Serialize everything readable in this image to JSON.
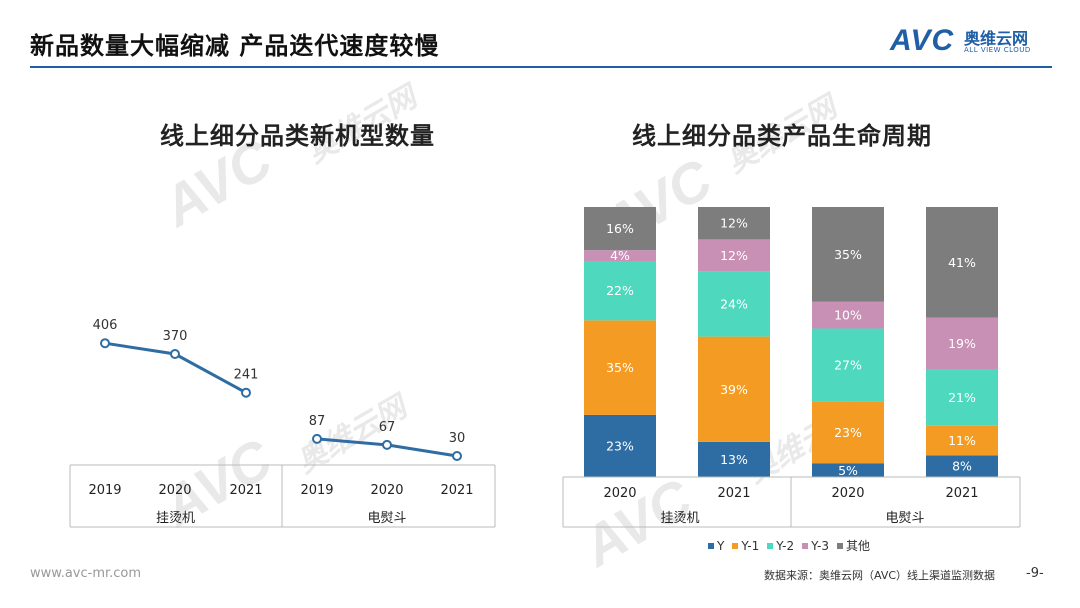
{
  "header": {
    "title": "新品数量大幅缩减  产品迭代速度较慢"
  },
  "logo": {
    "mark": "AVC",
    "cn": "奥维云网",
    "en": "ALL VIEW CLOUD",
    "color": "#1f5fa6"
  },
  "watermark": {
    "mark": "AVC",
    "cn": "奥维云网",
    "en": "ALL VIEW CLOUD"
  },
  "footer": {
    "website": "www.avc-mr.com",
    "source": "数据来源：奥维云网（AVC）线上渠道监测数据",
    "page": "-9-"
  },
  "chart_data": [
    {
      "type": "line",
      "title": "线上细分品类新机型数量",
      "color": "#2e6da4",
      "groups": [
        {
          "name": "挂烫机",
          "x": [
            "2019",
            "2020",
            "2021"
          ],
          "values": [
            406,
            370,
            241
          ]
        },
        {
          "name": "电熨斗",
          "x": [
            "2019",
            "2020",
            "2021"
          ],
          "values": [
            87,
            67,
            30
          ]
        }
      ],
      "ylim": [
        0,
        480
      ],
      "grid": false
    },
    {
      "type": "bar",
      "stacked": true,
      "title": "线上细分品类产品生命周期",
      "categories": [
        "2020",
        "2021",
        "2020",
        "2021"
      ],
      "groups": [
        {
          "name": "挂烫机",
          "span": 2
        },
        {
          "name": "电熨斗",
          "span": 2
        }
      ],
      "series": [
        {
          "name": "Y",
          "color": "#2e6da4",
          "values": [
            23,
            13,
            5,
            8
          ],
          "labels": [
            "23%",
            "13%",
            "5%",
            "8%"
          ]
        },
        {
          "name": "Y-1",
          "color": "#f39b22",
          "values": [
            35,
            39,
            23,
            11
          ],
          "labels": [
            "35%",
            "39%",
            "23%",
            "11%"
          ]
        },
        {
          "name": "Y-2",
          "color": "#4ed9bf",
          "values": [
            22,
            24,
            27,
            21
          ],
          "labels": [
            "22%",
            "24%",
            "27%",
            "21%"
          ]
        },
        {
          "name": "Y-3",
          "color": "#c990b5",
          "values": [
            4,
            12,
            10,
            19
          ],
          "labels": [
            "4%",
            "12%",
            "10%",
            "19%"
          ]
        },
        {
          "name": "其他",
          "color": "#7d7d7d",
          "values": [
            16,
            12,
            35,
            41
          ],
          "labels": [
            "16%",
            "12%",
            "35%",
            "41%"
          ]
        }
      ],
      "ylim": [
        0,
        100
      ],
      "legend": "bottom"
    }
  ]
}
